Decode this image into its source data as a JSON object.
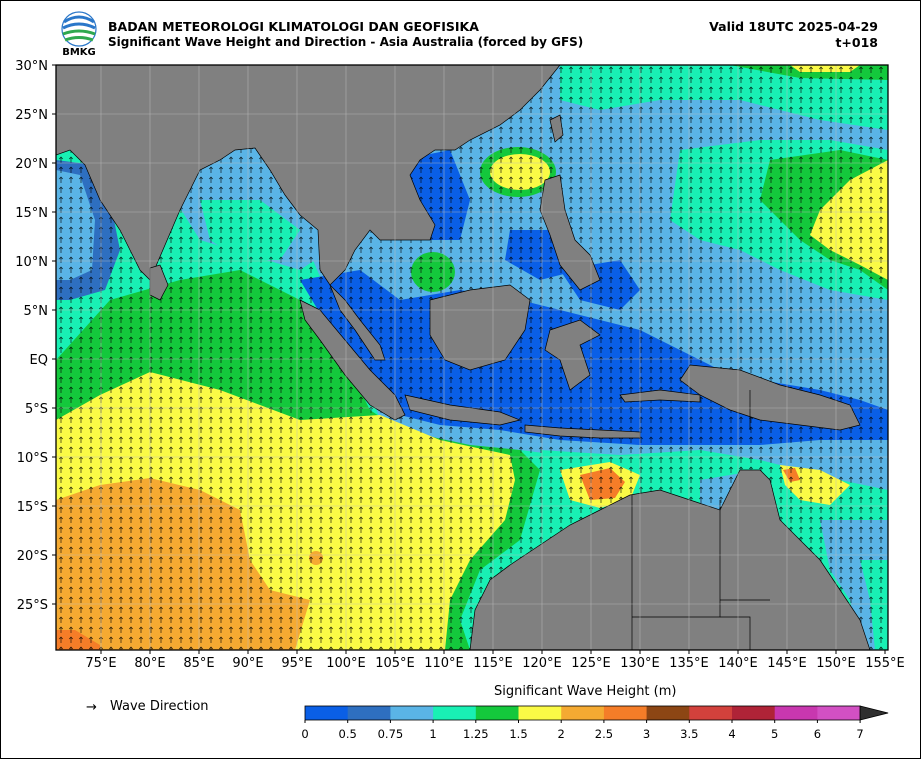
{
  "header": {
    "org": "BADAN METEOROLOGI KLIMATOLOGI DAN GEOFISIKA",
    "subtitle": "Significant Wave Height and Direction - Asia Australia (forced by GFS)",
    "valid": "Valid 18UTC 2025-04-29",
    "step": "t+018",
    "logo_text": "BMKG"
  },
  "map": {
    "lat_labels": [
      "30°N",
      "25°N",
      "20°N",
      "15°N",
      "10°N",
      "5°N",
      "EQ",
      "5°S",
      "10°S",
      "15°S",
      "20°S",
      "25°S"
    ],
    "lon_labels": [
      "75°E",
      "80°E",
      "85°E",
      "90°E",
      "95°E",
      "100°E",
      "105°E",
      "110°E",
      "115°E",
      "120°E",
      "125°E",
      "130°E",
      "135°E",
      "140°E",
      "145°E",
      "150°E",
      "155°E"
    ],
    "land_color": "#808080",
    "grid": true
  },
  "legend": {
    "arrow_symbol": "→",
    "label": "Wave Direction"
  },
  "colorbar": {
    "title": "Significant Wave Height (m)",
    "ticks": [
      "0",
      "0.5",
      "0.75",
      "1",
      "1.25",
      "1.5",
      "2",
      "2.5",
      "3",
      "3.5",
      "4",
      "5",
      "6",
      "7"
    ],
    "colors": [
      "#0a5fe6",
      "#2e6fc0",
      "#5ab4e6",
      "#19f0b4",
      "#14c83c",
      "#fafa46",
      "#f5aa32",
      "#f57d28",
      "#8c4614",
      "#d2413c",
      "#af2337",
      "#c837af",
      "#d250c3"
    ],
    "extend_color": "#2f2f2f"
  }
}
